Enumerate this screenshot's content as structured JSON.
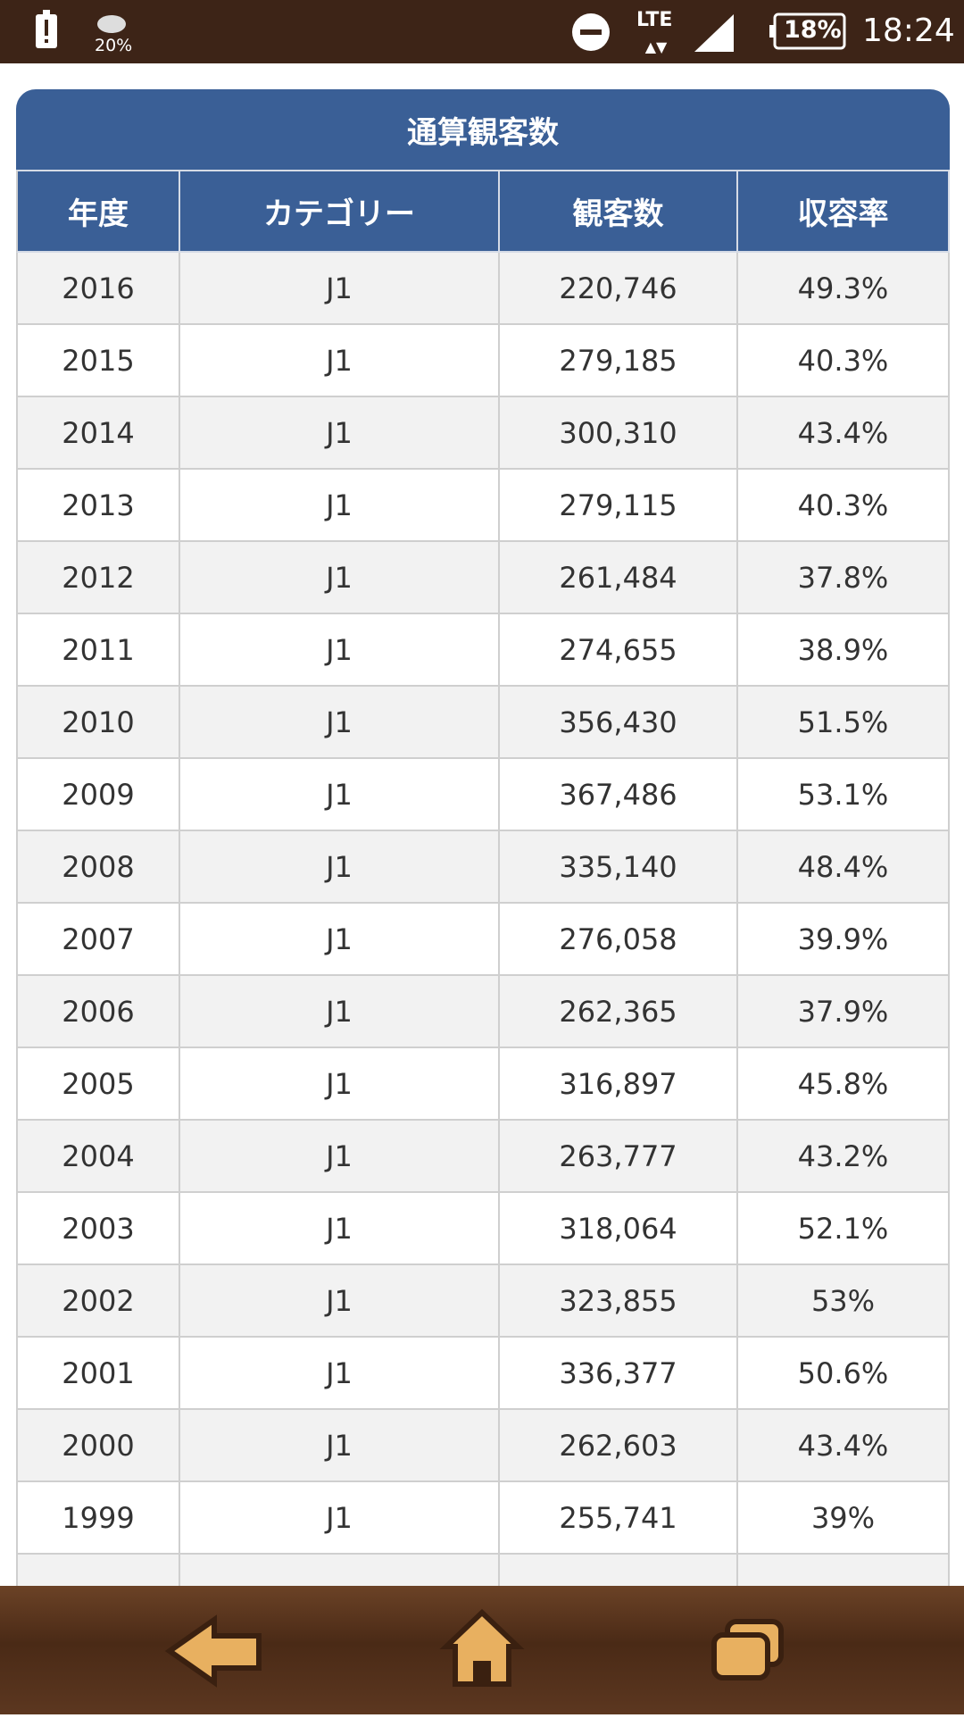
{
  "status_bar": {
    "weather": "20%",
    "network": "LTE",
    "battery": "18%",
    "time": "18:24"
  },
  "table": {
    "title": "通算観客数",
    "columns": [
      "年度",
      "カテゴリー",
      "観客数",
      "収容率"
    ],
    "rows": [
      [
        "2016",
        "J1",
        "220,746",
        "49.3%"
      ],
      [
        "2015",
        "J1",
        "279,185",
        "40.3%"
      ],
      [
        "2014",
        "J1",
        "300,310",
        "43.4%"
      ],
      [
        "2013",
        "J1",
        "279,115",
        "40.3%"
      ],
      [
        "2012",
        "J1",
        "261,484",
        "37.8%"
      ],
      [
        "2011",
        "J1",
        "274,655",
        "38.9%"
      ],
      [
        "2010",
        "J1",
        "356,430",
        "51.5%"
      ],
      [
        "2009",
        "J1",
        "367,486",
        "53.1%"
      ],
      [
        "2008",
        "J1",
        "335,140",
        "48.4%"
      ],
      [
        "2007",
        "J1",
        "276,058",
        "39.9%"
      ],
      [
        "2006",
        "J1",
        "262,365",
        "37.9%"
      ],
      [
        "2005",
        "J1",
        "316,897",
        "45.8%"
      ],
      [
        "2004",
        "J1",
        "263,777",
        "43.2%"
      ],
      [
        "2003",
        "J1",
        "318,064",
        "52.1%"
      ],
      [
        "2002",
        "J1",
        "323,855",
        "53%"
      ],
      [
        "2001",
        "J1",
        "336,377",
        "50.6%"
      ],
      [
        "2000",
        "J1",
        "262,603",
        "43.4%"
      ],
      [
        "1999",
        "J1",
        "255,741",
        "39%"
      ]
    ]
  }
}
